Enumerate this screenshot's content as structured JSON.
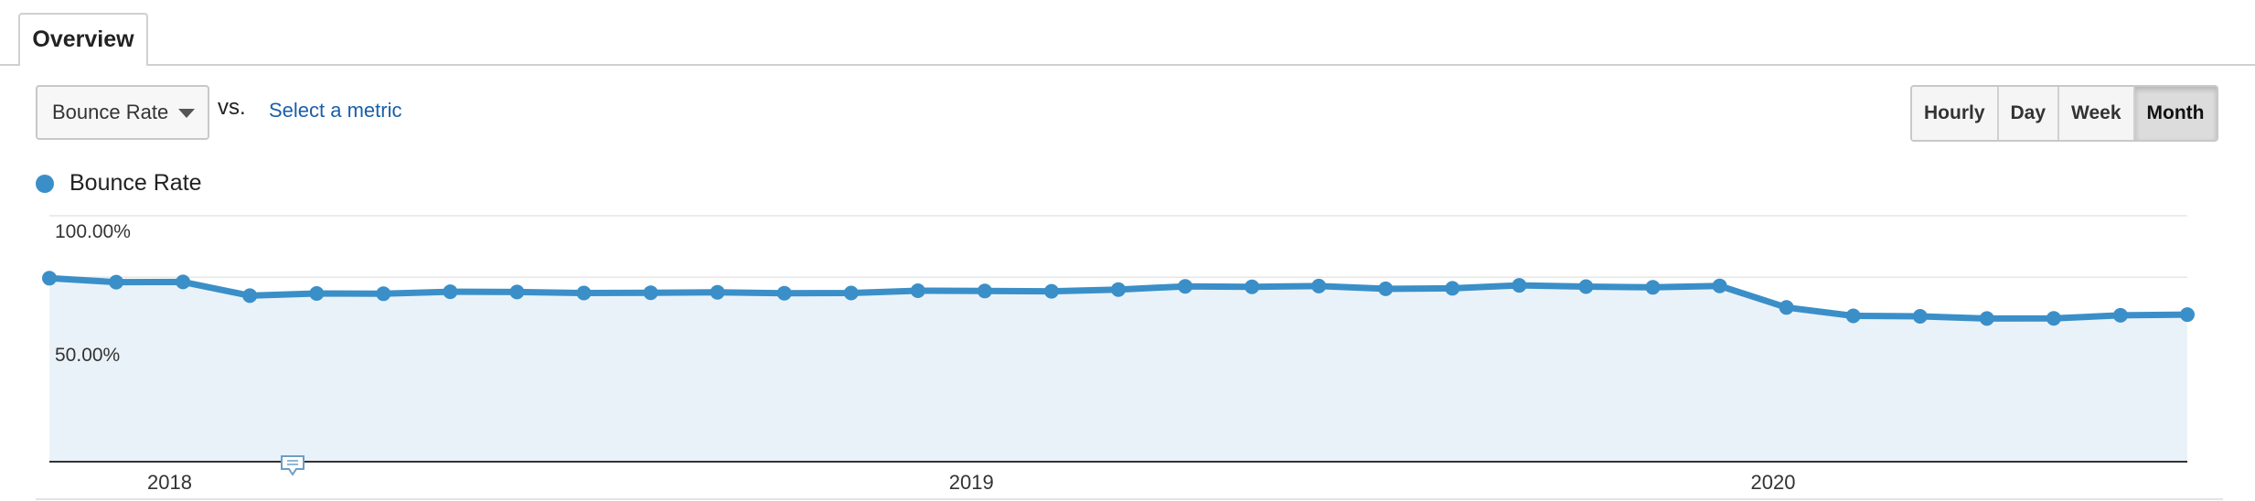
{
  "tabs": {
    "overview_label": "Overview"
  },
  "controls": {
    "metric_select": "Bounce Rate",
    "vs_label": "vs.",
    "select_metric_link": "Select a metric",
    "granularity": [
      "Hourly",
      "Day",
      "Week",
      "Month"
    ],
    "active_granularity": "Month"
  },
  "colors": {
    "series": "#3a8fc8",
    "area": "#eaf2f9",
    "link": "#1a5fa8"
  },
  "icons": {
    "annotation": "annotation-icon",
    "caret": "chevron-down-icon"
  },
  "chart_data": {
    "type": "area",
    "y_tick_labels": [
      "100.00%",
      "50.00%"
    ],
    "ylim": [
      0,
      100
    ],
    "x_year_labels": [
      "2018",
      "2019",
      "2020"
    ],
    "grid": true,
    "legend": "top-left",
    "series": [
      {
        "name": "Bounce Rate",
        "values": [
          74.6,
          73.0,
          73.1,
          67.5,
          68.4,
          68.3,
          69.1,
          69.0,
          68.6,
          68.7,
          68.9,
          68.5,
          68.6,
          69.5,
          69.4,
          69.3,
          70.0,
          71.3,
          71.1,
          71.4,
          70.3,
          70.5,
          71.7,
          71.2,
          70.9,
          71.5,
          62.7,
          59.3,
          59.1,
          58.2,
          58.3,
          59.5,
          59.8
        ]
      }
    ]
  }
}
